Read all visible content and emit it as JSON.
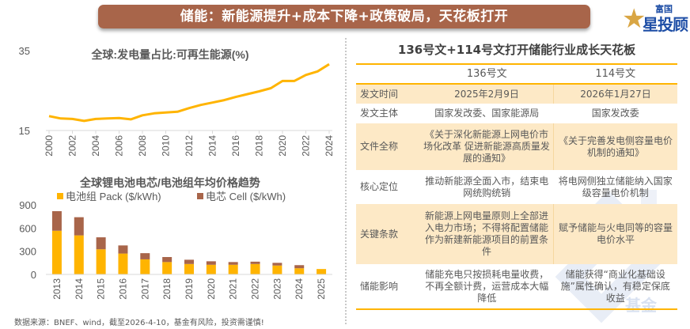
{
  "banner": {
    "title": "储能：新能源提升+成本下降+政策破局，天花板打开"
  },
  "logo": {
    "top": "富国",
    "main": "星投顾"
  },
  "watermark": {
    "text": "基金"
  },
  "colors": {
    "banner": "#a8654a",
    "accent": "#ffb400",
    "cell": "#a8654a",
    "shade": "#fde9c6"
  },
  "chart_data": [
    {
      "type": "line",
      "title": "全球:发电量占比:可再生能源(%)",
      "xlabel": "",
      "ylabel": "",
      "ylim": [
        15,
        35
      ],
      "yticks": [
        "35",
        "15"
      ],
      "ytick_values": [
        35,
        15
      ],
      "x": [
        2000,
        2001,
        2002,
        2003,
        2004,
        2005,
        2006,
        2007,
        2008,
        2009,
        2010,
        2011,
        2012,
        2013,
        2014,
        2015,
        2016,
        2017,
        2018,
        2019,
        2020,
        2021,
        2022,
        2023,
        2024
      ],
      "xticks": [
        "2000",
        "2002",
        "2004",
        "2006",
        "2008",
        "2010",
        "2012",
        "2014",
        "2016",
        "2018",
        "2020",
        "2022",
        "2024"
      ],
      "series": [
        {
          "name": "可再生能源",
          "color": "#ffb400",
          "values": [
            18.6,
            18.0,
            17.9,
            17.4,
            17.9,
            18.0,
            18.1,
            17.8,
            18.8,
            19.3,
            19.5,
            19.7,
            20.6,
            21.4,
            22.0,
            22.6,
            23.4,
            24.1,
            24.8,
            25.6,
            27.4,
            27.4,
            28.9,
            29.8,
            31.6
          ]
        }
      ],
      "grid": false
    },
    {
      "type": "bar",
      "stacked": true,
      "title": "全球锂电池电芯/电池组年均价格趋势",
      "ylim": [
        0,
        900
      ],
      "yticks": [
        "900",
        "600",
        "300",
        "0"
      ],
      "ytick_values": [
        900,
        600,
        300,
        0
      ],
      "categories": [
        "2013",
        "2014",
        "2015",
        "2016",
        "2017",
        "2018",
        "2019",
        "2020",
        "2021",
        "2022",
        "2023",
        "2024",
        "2025"
      ],
      "legend_position": "top",
      "series": [
        {
          "name": "电池组 Pack ($/kWh)",
          "color": "#ffb400",
          "values": [
            565,
            505,
            325,
            270,
            195,
            160,
            135,
            125,
            125,
            135,
            115,
            80,
            70
          ]
        },
        {
          "name": "电芯 Cell ($/kWh)",
          "color": "#a8654a",
          "values": [
            253,
            235,
            155,
            105,
            80,
            65,
            55,
            45,
            35,
            30,
            35,
            40,
            0
          ]
        }
      ]
    }
  ],
  "table": {
    "title": "136号文+114号文打开储能行业成长天花板",
    "header": [
      "",
      "136号文",
      "114号文"
    ],
    "rows": [
      {
        "label": "发文时间",
        "c136": "2025年2月9日",
        "c114": "2026年1月27日"
      },
      {
        "label": "发文主体",
        "c136": "国家发改委、国家能源局",
        "c114": "国家发改委"
      },
      {
        "label": "文件全称",
        "c136": "《关于深化新能源上网电价市场化改革 促进新能源高质量发展的通知》",
        "c114": "《关于完善发电侧容量电价机制的通知》"
      },
      {
        "label": "核心定位",
        "c136": "推动新能源全面入市，结束电网统购统销",
        "c114": "将电网侧独立储能纳入国家级容量电价机制"
      },
      {
        "label": "关键条款",
        "c136": "新能源上网电量原则上全部进入电力市场；不得将配置储能作为新建新能源项目的前置条件",
        "c114": "赋予储能与火电同等的容量电价水平"
      },
      {
        "label": "储能影响",
        "c136": "储能充电只按损耗电量收费，不再全额计费，运营成本大幅降低",
        "c114": "储能获得“商业化基础设施”属性确认，有稳定保底收益"
      }
    ]
  },
  "footer": {
    "source": "数据来源：BNEF、wind，截至2026-4-10，基金有风险，投资需谨慎!"
  }
}
